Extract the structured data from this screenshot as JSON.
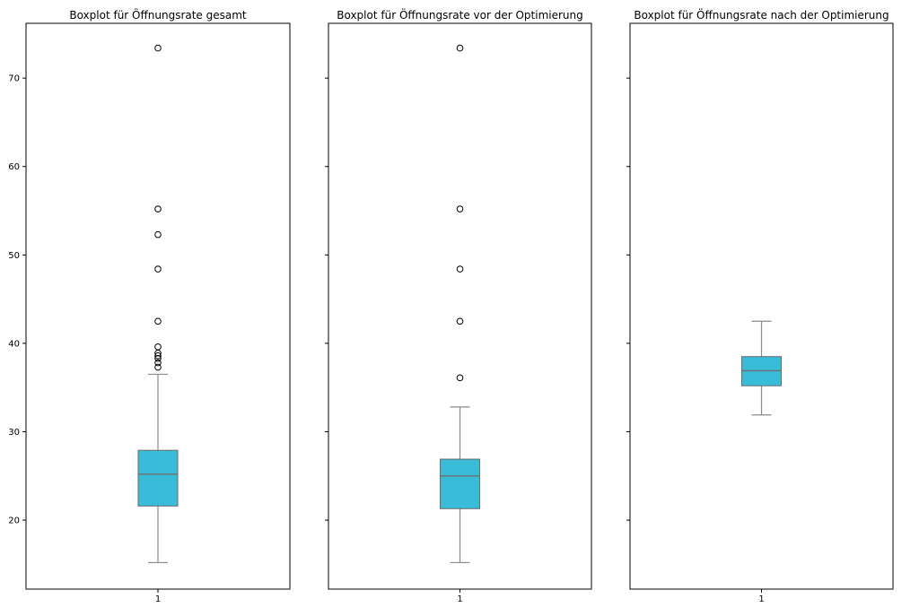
{
  "chart_data": [
    {
      "type": "box",
      "title": "Boxplot für Öffnungsrate gesamt",
      "categories": [
        "1"
      ],
      "box": {
        "whisker_low": 15.2,
        "q1": 21.6,
        "median": 25.2,
        "q3": 27.9,
        "whisker_high": 36.5
      },
      "outliers": [
        37.3,
        37.8,
        38.3,
        38.6,
        38.9,
        39.6,
        42.5,
        48.4,
        52.3,
        55.2,
        73.4
      ],
      "ylim": [
        12.2,
        76.2
      ],
      "yticks": [
        20,
        30,
        40,
        50,
        60,
        70
      ],
      "show_y_tick_labels": true,
      "color": "#38bcd8"
    },
    {
      "type": "box",
      "title": "Boxplot für Öffnungsrate vor der Optimierung",
      "categories": [
        "1"
      ],
      "box": {
        "whisker_low": 15.2,
        "q1": 21.3,
        "median": 25.0,
        "q3": 26.9,
        "whisker_high": 32.8
      },
      "outliers": [
        36.1,
        42.5,
        48.4,
        55.2,
        73.4
      ],
      "ylim": [
        12.2,
        76.2
      ],
      "yticks": [
        20,
        30,
        40,
        50,
        60,
        70
      ],
      "show_y_tick_labels": false,
      "color": "#38bcd8"
    },
    {
      "type": "box",
      "title": "Boxplot für Öffnungsrate nach der Optimierung",
      "categories": [
        "1"
      ],
      "box": {
        "whisker_low": 31.9,
        "q1": 35.2,
        "median": 36.9,
        "q3": 38.5,
        "whisker_high": 42.5
      },
      "outliers": [],
      "ylim": [
        12.2,
        76.2
      ],
      "yticks": [
        20,
        30,
        40,
        50,
        60,
        70
      ],
      "show_y_tick_labels": false,
      "color": "#38bcd8"
    }
  ]
}
